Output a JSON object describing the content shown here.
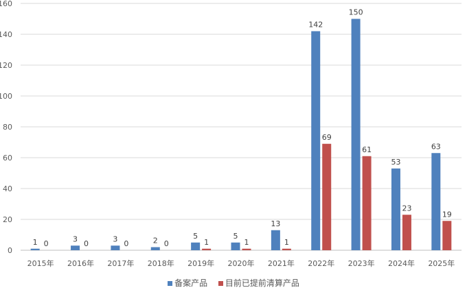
{
  "chart_data": {
    "type": "bar",
    "title": "",
    "xlabel": "",
    "ylabel": "",
    "ylim": [
      0,
      160
    ],
    "yticks": [
      0,
      20,
      40,
      60,
      80,
      100,
      120,
      140,
      160
    ],
    "grid": true,
    "legend_position": "bottom",
    "categories": [
      "2015年",
      "2016年",
      "2017年",
      "2018年",
      "2019年",
      "2020年",
      "2021年",
      "2022年",
      "2023年",
      "2024年",
      "2025年"
    ],
    "series": [
      {
        "name": "备案产品",
        "color": "#4f81bd",
        "values": [
          1,
          3,
          3,
          2,
          5,
          5,
          13,
          142,
          150,
          53,
          63
        ]
      },
      {
        "name": "目前已提前清算产品",
        "color": "#c0504d",
        "values": [
          0,
          0,
          0,
          0,
          1,
          1,
          1,
          69,
          61,
          23,
          19
        ]
      }
    ]
  }
}
